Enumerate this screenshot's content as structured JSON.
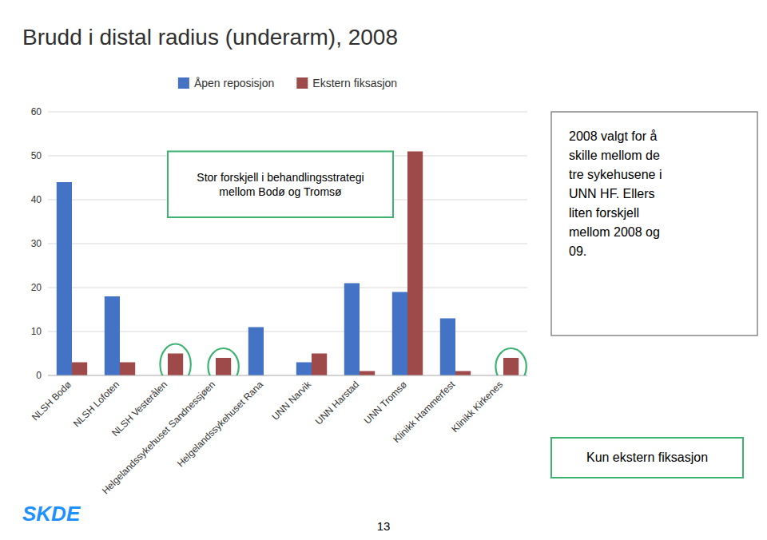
{
  "chart_data": {
    "type": "bar",
    "title": "Brudd i distal radius (underarm), 2008",
    "categories": [
      "NLSH Bodø",
      "NLSH Lofoten",
      "NLSH Vesterålen",
      "Helgelandssykehuset Sandnessjøen",
      "Helgelandssykehuset Rana",
      "UNN Narvik",
      "UNN Harstad",
      "UNN Tromsø",
      "Klinikk Hammerfest",
      "Klinikk Kirkenes"
    ],
    "series": [
      {
        "name": "Åpen reposisjon",
        "color": "#4472C4",
        "values": [
          44,
          18,
          0,
          0,
          11,
          3,
          21,
          19,
          13,
          0
        ]
      },
      {
        "name": "Ekstern fiksasjon",
        "color": "#9E4A4A",
        "values": [
          3,
          3,
          5,
          4,
          0,
          5,
          1,
          51,
          1,
          4
        ]
      }
    ],
    "ylim": [
      0,
      60
    ],
    "yticks": [
      0,
      10,
      20,
      30,
      40,
      50,
      60
    ],
    "grid": true,
    "legend": "top",
    "annotations": [
      {
        "text": "Stor forskjell i behandlingsstrategi\nmellom Bodø og Tromsø"
      },
      {
        "text": "2008 valgt for å\nskille mellom de\ntre sykehusene i\nUNN HF. Ellers\nliten forskjell\nmellom 2008 og\n09."
      },
      {
        "text": "Kun ekstern fiksasjon",
        "series": "Ekstern fiksasjon",
        "categories": [
          "NLSH Vesterålen",
          "Helgelandssykehuset Sandnessjøen",
          "Klinikk Kirkenes"
        ]
      },
      {
        "text": "13"
      },
      {
        "text": "SKDE"
      }
    ]
  }
}
